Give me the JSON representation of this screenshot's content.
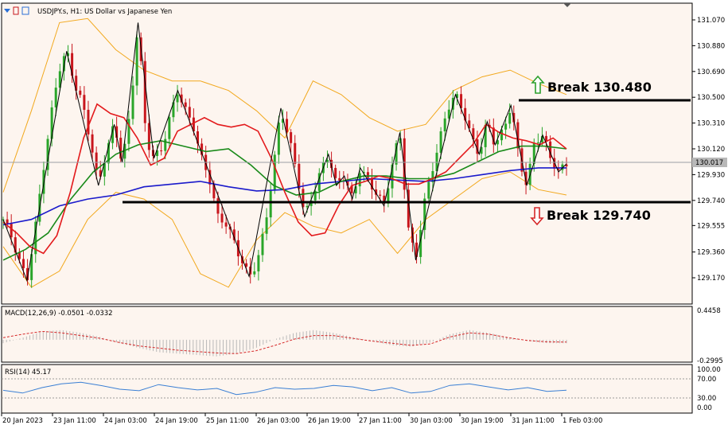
{
  "header": {
    "symbol_text": "USDJPY.s, H1:  US Dollar vs Japanese Yen"
  },
  "current_price": "130.017",
  "annotations": {
    "break_high": "Break 130.480",
    "break_low": "Break 129.740"
  },
  "macd": {
    "label": "MACD(12,26,9) -0.0501 -0.0332",
    "scale_top": "0.4458",
    "scale_bottom": "-0.2995"
  },
  "rsi": {
    "label": "RSI(14) 45.17",
    "scale": [
      "100.00",
      "70.00",
      "30.00",
      "0.00"
    ]
  },
  "colors": {
    "bg": "#fdf5ef",
    "up_candle": "#2aa52a",
    "down_candle": "#c8161d",
    "ma_red": "#e31a1c",
    "ma_green": "#198a19",
    "ma_blue": "#1a1acb",
    "bollinger": "#f2a81d",
    "macd_signal": "#d62728",
    "rsi_line": "#3a7fd4",
    "arrow_up": "#2ca02c",
    "arrow_down": "#d62728"
  },
  "chart_data": {
    "type": "candlestick",
    "title": "USDJPY.s, H1:  US Dollar vs Japanese Yen",
    "y_ticks": [
      "131.070",
      "130.880",
      "130.690",
      "130.500",
      "130.310",
      "130.120",
      "129.930",
      "129.740",
      "129.555",
      "129.360",
      "129.170"
    ],
    "x_ticks": [
      "20 Jan 2023",
      "23 Jan 11:00",
      "24 Jan 03:00",
      "24 Jan 19:00",
      "25 Jan 11:00",
      "26 Jan 03:00",
      "26 Jan 19:00",
      "27 Jan 11:00",
      "30 Jan 03:00",
      "30 Jan 19:00",
      "31 Jan 11:00",
      "1 Feb 03:00"
    ],
    "ylim": [
      129.08,
      131.16
    ],
    "levels": {
      "resistance": 130.48,
      "support": 129.74
    },
    "close_path": [
      129.6,
      129.48,
      129.3,
      129.15,
      129.52,
      129.95,
      130.35,
      130.7,
      130.84,
      130.6,
      130.45,
      130.18,
      129.85,
      130.1,
      130.3,
      130.02,
      130.38,
      131.05,
      130.2,
      130.05,
      130.12,
      130.35,
      130.55,
      130.4,
      130.28,
      130.05,
      129.9,
      129.62,
      129.58,
      129.45,
      129.3,
      129.18,
      129.28,
      129.55,
      129.95,
      130.42,
      130.2,
      129.95,
      129.62,
      129.78,
      129.95,
      130.08,
      129.85,
      129.92,
      129.75,
      129.98,
      129.88,
      129.8,
      129.7,
      130.0,
      130.24,
      129.55,
      129.3,
      129.7,
      129.95,
      130.18,
      130.42,
      130.52,
      130.4,
      130.2,
      130.08,
      130.32,
      130.15,
      130.25,
      130.44,
      130.05,
      129.85,
      130.18,
      130.22,
      130.05,
      129.95,
      130.01
    ],
    "ma_red": [
      129.58,
      129.5,
      129.4,
      129.35,
      129.48,
      129.8,
      130.2,
      130.45,
      130.38,
      130.35,
      130.2,
      130.0,
      130.05,
      130.25,
      130.3,
      130.35,
      130.3,
      130.28,
      130.3,
      130.25,
      130.05,
      129.8,
      129.58,
      129.48,
      129.5,
      129.7,
      129.85,
      129.88,
      129.92,
      129.9,
      129.86,
      129.86,
      129.9,
      129.95,
      130.05,
      130.15,
      130.3,
      130.24,
      130.2,
      130.18,
      130.15,
      130.2,
      130.12
    ],
    "ma_green": [
      129.3,
      129.38,
      129.5,
      129.75,
      129.95,
      130.08,
      130.15,
      130.18,
      130.14,
      130.1,
      130.12,
      130.0,
      129.85,
      129.78,
      129.8,
      129.88,
      129.92,
      129.92,
      129.9,
      129.9,
      129.94,
      130.02,
      130.1,
      130.14,
      130.14,
      130.12
    ],
    "ma_blue": [
      129.56,
      129.6,
      129.7,
      129.75,
      129.78,
      129.84,
      129.86,
      129.88,
      129.84,
      129.81,
      129.82,
      129.86,
      129.88,
      129.9,
      129.89,
      129.88,
      129.9,
      129.93,
      129.96,
      129.98,
      129.98
    ],
    "bollinger_upper": [
      129.8,
      130.4,
      131.05,
      131.08,
      130.85,
      130.7,
      130.62,
      130.62,
      130.55,
      130.4,
      130.2,
      130.62,
      130.52,
      130.35,
      130.25,
      130.3,
      130.55,
      130.65,
      130.7,
      130.6,
      130.52
    ],
    "bollinger_lower": [
      129.4,
      129.1,
      129.22,
      129.6,
      129.8,
      129.75,
      129.6,
      129.2,
      129.1,
      129.45,
      129.65,
      129.55,
      129.5,
      129.6,
      129.35,
      129.6,
      129.75,
      129.9,
      129.95,
      129.82,
      129.78
    ],
    "macd_signal": [
      0.03,
      0.08,
      0.12,
      0.1,
      0.06,
      0.02,
      -0.04,
      -0.09,
      -0.12,
      -0.15,
      -0.17,
      -0.19,
      -0.2,
      -0.16,
      -0.08,
      0.01,
      0.06,
      0.06,
      0.02,
      -0.02,
      -0.05,
      -0.08,
      -0.06,
      0.04,
      0.1,
      0.08,
      0.03,
      -0.01,
      -0.03,
      -0.0332
    ],
    "macd_hist": [
      -0.05,
      0.03,
      0.12,
      0.14,
      0.1,
      0.04,
      -0.05,
      -0.12,
      -0.18,
      -0.2,
      -0.22,
      -0.24,
      -0.2,
      -0.12,
      0.01,
      0.1,
      0.14,
      0.1,
      0.04,
      -0.02,
      -0.08,
      -0.1,
      -0.04,
      0.08,
      0.14,
      0.1,
      0.04,
      -0.02,
      -0.05,
      -0.0501
    ],
    "rsi_values": [
      45,
      38,
      52,
      62,
      66,
      58,
      48,
      44,
      60,
      52,
      46,
      50,
      34,
      40,
      52,
      48,
      50,
      58,
      54,
      44,
      52,
      38,
      42,
      58,
      62,
      54,
      46,
      52,
      42,
      45.17
    ]
  }
}
